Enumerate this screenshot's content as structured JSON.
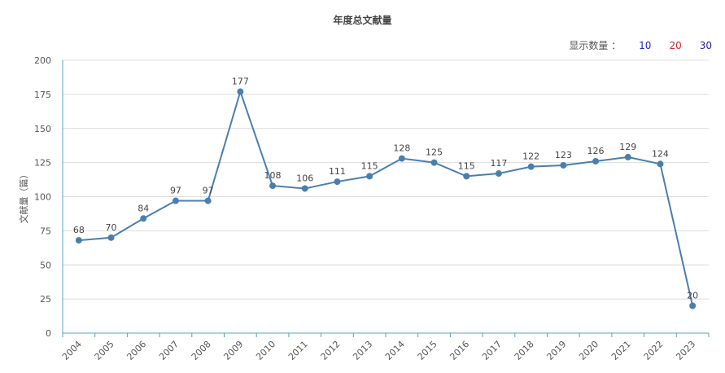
{
  "page": {
    "title": "年度总文献量",
    "count_label": "显示数量 ：",
    "count_options": [
      {
        "label": "10",
        "color": "#1f1fd0"
      },
      {
        "label": "20",
        "color": "#e0202a"
      },
      {
        "label": "30",
        "color": "#1f1fa0"
      }
    ]
  },
  "chart_data": {
    "type": "line",
    "title": "年度总文献量",
    "xlabel": "",
    "ylabel": "文献量（篇）",
    "ylim": [
      0,
      200
    ],
    "yticks": [
      0,
      25,
      50,
      75,
      100,
      125,
      150,
      175,
      200
    ],
    "grid": true,
    "categories": [
      "2004",
      "2005",
      "2006",
      "2007",
      "2008",
      "2009",
      "2010",
      "2011",
      "2012",
      "2013",
      "2014",
      "2015",
      "2016",
      "2017",
      "2018",
      "2019",
      "2020",
      "2021",
      "2022",
      "2023"
    ],
    "series": [
      {
        "values": [
          68,
          70,
          84,
          97,
          97,
          177,
          108,
          106,
          111,
          115,
          128,
          125,
          115,
          117,
          122,
          123,
          126,
          129,
          124,
          20
        ],
        "color": "#4a7fad"
      }
    ]
  }
}
